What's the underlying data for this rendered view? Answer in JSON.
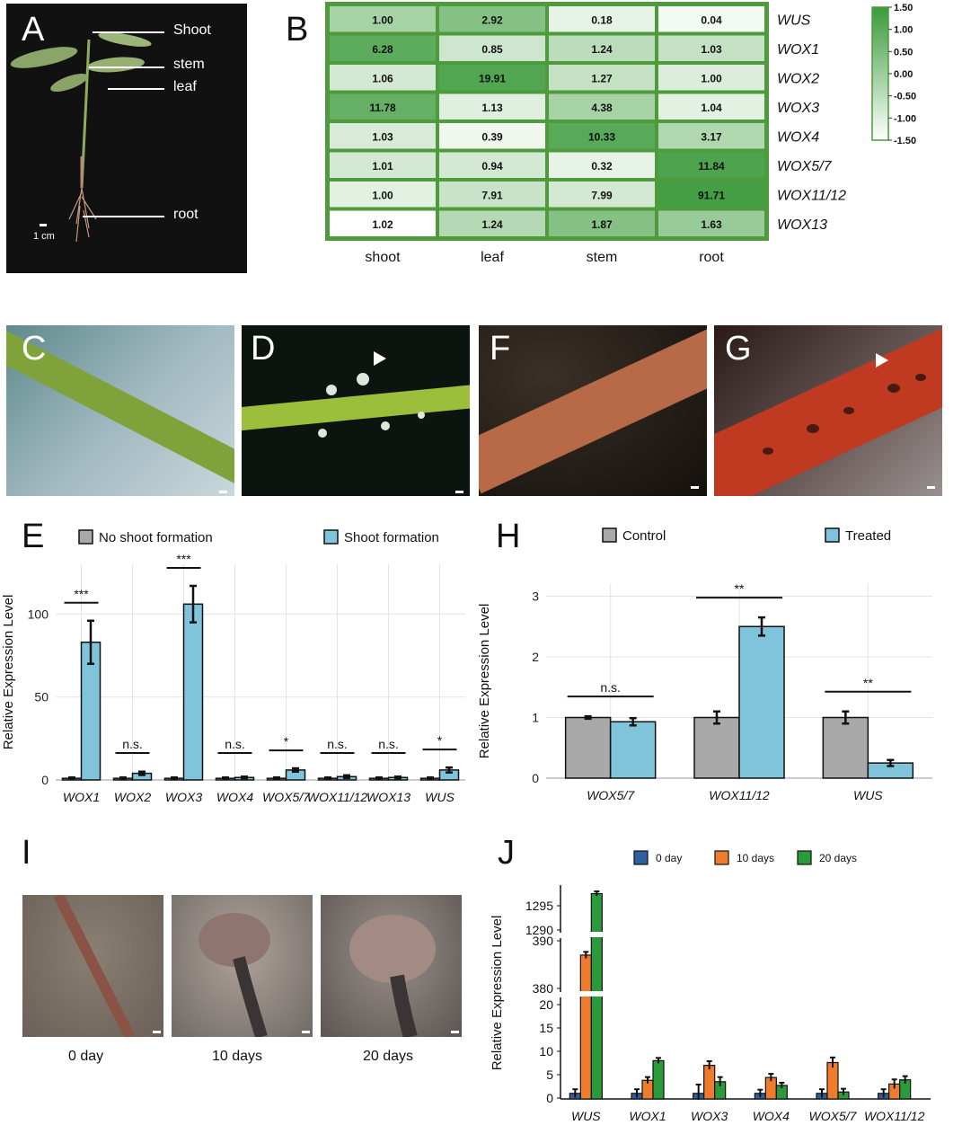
{
  "panels": {
    "A": "A",
    "B": "B",
    "C": "C",
    "D": "D",
    "F": "F",
    "G": "G",
    "E": "E",
    "H": "H",
    "I": "I",
    "J": "J"
  },
  "panel_a": {
    "labels": [
      "Shoot",
      "stem",
      "leaf",
      "root"
    ],
    "scale_bar": "1 cm"
  },
  "heatmap": {
    "rows": [
      "WUS",
      "WOX1",
      "WOX2",
      "WOX3",
      "WOX4",
      "WOX5/7",
      "WOX11/12",
      "WOX13"
    ],
    "cols": [
      "shoot",
      "leaf",
      "stem",
      "root"
    ],
    "values": [
      [
        "1.00",
        "2.92",
        "0.18",
        "0.04"
      ],
      [
        "6.28",
        "0.85",
        "1.24",
        "1.03"
      ],
      [
        "1.06",
        "19.91",
        "1.27",
        "1.00"
      ],
      [
        "11.78",
        "1.13",
        "4.38",
        "1.04"
      ],
      [
        "1.03",
        "0.39",
        "10.33",
        "3.17"
      ],
      [
        "1.01",
        "0.94",
        "0.32",
        "11.84"
      ],
      [
        "1.00",
        "7.91",
        "7.99",
        "91.71"
      ],
      [
        "1.02",
        "1.24",
        "1.87",
        "1.63"
      ]
    ],
    "shade": [
      [
        0.45,
        0.62,
        0.12,
        0.06
      ],
      [
        0.82,
        0.25,
        0.34,
        0.3
      ],
      [
        0.22,
        0.88,
        0.3,
        0.18
      ],
      [
        0.78,
        0.16,
        0.45,
        0.14
      ],
      [
        0.2,
        0.08,
        0.85,
        0.4
      ],
      [
        0.22,
        0.22,
        0.12,
        0.9
      ],
      [
        0.14,
        0.28,
        0.22,
        0.95
      ],
      [
        0.0,
        0.38,
        0.62,
        0.52
      ]
    ],
    "legend": [
      "1.50",
      "1.00",
      "0.50",
      "0.00",
      "-0.50",
      "-1.00",
      "-1.50"
    ],
    "color_high": "#3a9a3a",
    "color_low": "#ffffff"
  },
  "chart_data": [
    {
      "type": "bar",
      "panel": "E",
      "categories": [
        "WOX1",
        "WOX2",
        "WOX3",
        "WOX4",
        "WOX5/7",
        "WOX11/12",
        "WOX13",
        "WUS"
      ],
      "series": [
        {
          "name": "No shoot formation",
          "values": [
            1,
            1,
            1,
            1,
            1,
            1,
            1,
            1
          ],
          "errors": [
            0.5,
            0.5,
            0.5,
            0.5,
            0.5,
            0.5,
            0.5,
            0.5
          ],
          "color": "#a9a9a9"
        },
        {
          "name": "Shoot formation",
          "values": [
            83,
            4,
            106,
            1.5,
            6,
            2,
            1.5,
            6
          ],
          "errors": [
            13,
            1,
            11,
            0.5,
            1,
            0.8,
            0.5,
            1.5
          ],
          "color": "#7fc4db"
        }
      ],
      "significance": [
        "***",
        "n.s.",
        "***",
        "n.s.",
        "*",
        "n.s.",
        "n.s.",
        "*"
      ],
      "ylabel": "Relative Expression Level",
      "yticks": [
        0,
        50,
        100
      ],
      "ylim": [
        0,
        130
      ]
    },
    {
      "type": "bar",
      "panel": "H",
      "categories": [
        "WOX5/7",
        "WOX11/12",
        "WUS"
      ],
      "series": [
        {
          "name": "Control",
          "values": [
            1.0,
            1.0,
            1.0
          ],
          "errors": [
            0.02,
            0.1,
            0.1
          ],
          "color": "#a9a9a9"
        },
        {
          "name": "Treated",
          "values": [
            0.93,
            2.5,
            0.25
          ],
          "errors": [
            0.06,
            0.15,
            0.05
          ],
          "color": "#7fc4db"
        }
      ],
      "significance": [
        "n.s.",
        "**",
        "**"
      ],
      "ylabel": "Relative Expression Level",
      "yticks": [
        0,
        1,
        2,
        3
      ],
      "ylim": [
        0,
        3.2
      ]
    },
    {
      "type": "bar",
      "panel": "J",
      "categories": [
        "WUS",
        "WOX1",
        "WOX3",
        "WOX4",
        "WOX5/7",
        "WOX11/12"
      ],
      "series": [
        {
          "name": "0 day",
          "values": [
            1,
            1,
            1,
            1,
            1,
            1
          ],
          "errors": [
            0.5,
            0.5,
            1.5,
            0.4,
            0.5,
            0.5
          ],
          "color": "#2f5f9e"
        },
        {
          "name": "10 days",
          "values": [
            387,
            3.8,
            7,
            4.4,
            7.6,
            3
          ],
          "errors": [
            0.3,
            0.3,
            0.5,
            0.4,
            0.7,
            0.6
          ],
          "color": "#f07b2c"
        },
        {
          "name": "20 days",
          "values": [
            1297.5,
            8,
            3.5,
            2.7,
            1.3,
            3.9
          ],
          "errors": [
            0.1,
            0.2,
            0.6,
            0.2,
            0.3,
            0.4
          ],
          "color": "#2a9a3a"
        }
      ],
      "ylabel": "Relative Expression Level",
      "yticks": [
        0,
        5,
        10,
        15,
        20,
        380,
        390,
        1290,
        1295
      ],
      "axis_breaks": [
        [
          20,
          380
        ],
        [
          390,
          1290
        ]
      ]
    }
  ],
  "photos_i": {
    "captions": [
      "0 day",
      "10 days",
      "20 days"
    ]
  }
}
